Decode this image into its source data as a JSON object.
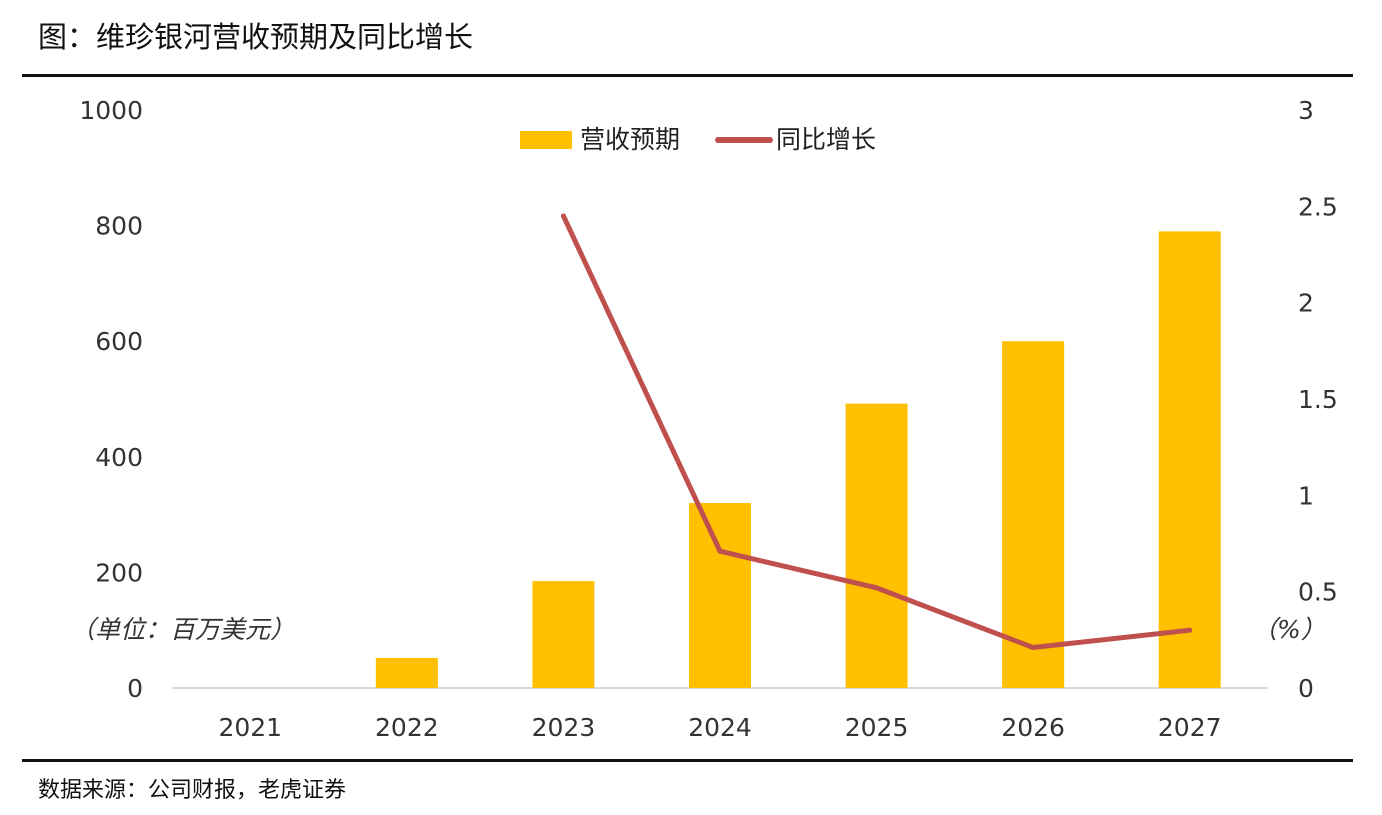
{
  "header": {
    "title": "图：维珍银河营收预期及同比增长"
  },
  "footer": {
    "source": "数据来源：公司财报，老虎证券"
  },
  "chart_data": {
    "type": "bar",
    "categories": [
      "2021",
      "2022",
      "2023",
      "2024",
      "2025",
      "2026",
      "2027"
    ],
    "series": [
      {
        "name": "营收预期",
        "type": "bar",
        "axis": "left",
        "color": "#FFC000",
        "values": [
          0,
          52,
          185,
          320,
          492,
          600,
          790
        ]
      },
      {
        "name": "同比增长",
        "type": "line",
        "axis": "right",
        "color": "#C0504D",
        "values": [
          null,
          null,
          2.45,
          0.71,
          0.52,
          0.21,
          0.3
        ]
      }
    ],
    "y_left": {
      "min": 0,
      "max": 1000,
      "ticks": [
        "0",
        "200",
        "400",
        "600",
        "800",
        "1000"
      ],
      "unit_label": "（单位：百万美元）"
    },
    "y_right": {
      "min": 0,
      "max": 3,
      "ticks": [
        "0",
        "0.5",
        "1",
        "1.5",
        "2",
        "2.5",
        "3"
      ],
      "unit_label": "（%）"
    },
    "legend": {
      "position": "top-center"
    },
    "grid": false
  }
}
